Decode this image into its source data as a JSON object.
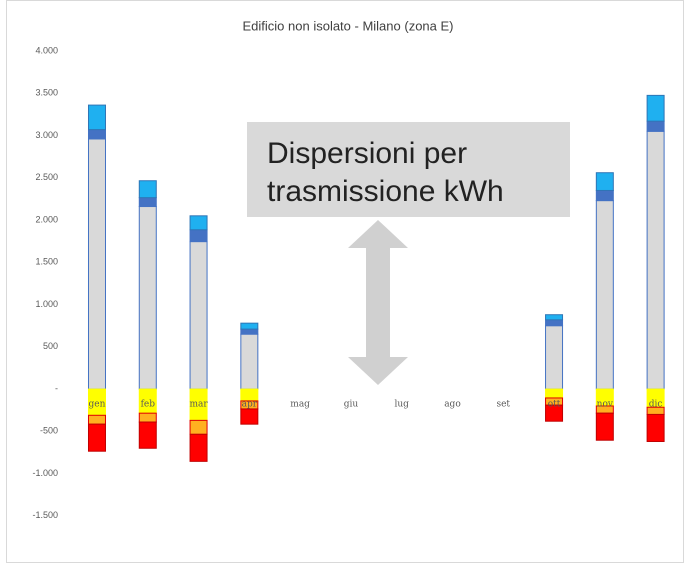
{
  "chart_data": {
    "type": "stacked_bar",
    "title": "Edificio non isolato - Milano (zona E)",
    "annotation": [
      "Dispersioni per",
      "trasmissione kWh"
    ],
    "categories": [
      "gen",
      "feb",
      "mar",
      "apr",
      "mag",
      "giu",
      "lug",
      "ago",
      "set",
      "ott",
      "nov",
      "dic"
    ],
    "series": [
      {
        "color": "#d9d9d9",
        "stroke": "#4472c4",
        "values": [
          2960,
          2160,
          1745,
          650,
          null,
          null,
          null,
          null,
          null,
          750,
          2230,
          3050
        ]
      },
      {
        "color": "#4472c4",
        "stroke": "#4472c4",
        "values": [
          110,
          105,
          140,
          60,
          null,
          null,
          null,
          null,
          null,
          70,
          120,
          120
        ]
      },
      {
        "color": "#1fb0f0",
        "stroke": "#2e75b6",
        "values": [
          290,
          200,
          165,
          70,
          null,
          null,
          null,
          null,
          null,
          60,
          210,
          305
        ]
      },
      {
        "color": "#ffff00",
        "stroke": "#ffff00",
        "values": [
          -310,
          -285,
          -370,
          -140,
          null,
          null,
          null,
          null,
          null,
          -105,
          -200,
          -215
        ]
      },
      {
        "color": "#ffb020",
        "stroke": "#e00000",
        "values": [
          -105,
          -105,
          -165,
          -95,
          null,
          null,
          null,
          null,
          null,
          -85,
          -85,
          -85
        ]
      },
      {
        "color": "#ff0000",
        "stroke": "#c00000",
        "values": [
          -320,
          -310,
          -320,
          -180,
          null,
          null,
          null,
          null,
          null,
          -190,
          -320,
          -320
        ]
      }
    ],
    "ylim": [
      -1750,
      4000
    ],
    "yticks": [
      {
        "value": 4000,
        "label": "4.000"
      },
      {
        "value": 3500,
        "label": "3.500"
      },
      {
        "value": 3000,
        "label": "3.000"
      },
      {
        "value": 2500,
        "label": "2.500"
      },
      {
        "value": 2000,
        "label": "2.000"
      },
      {
        "value": 1500,
        "label": "1.500"
      },
      {
        "value": 1000,
        "label": "1.000"
      },
      500,
      {
        "value": 0,
        "label": "-"
      },
      -500,
      {
        "value": -1000,
        "label": "-1.000"
      },
      {
        "value": -1500,
        "label": "-1.500"
      }
    ]
  }
}
